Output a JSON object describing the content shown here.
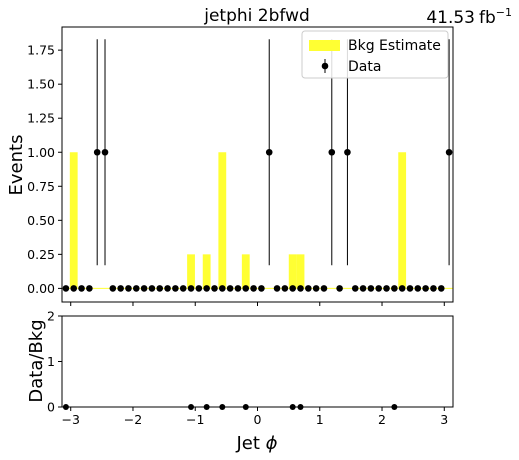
{
  "chart_data": [
    {
      "type": "bar",
      "panel": "main",
      "title": "jetphi  2bfwd",
      "luminosity_value": "41.53",
      "luminosity_unit": "fb",
      "luminosity_exponent": "−1",
      "xlabel": "",
      "ylabel": "Events",
      "xlim": [
        -3.14,
        3.14
      ],
      "ylim": [
        -0.1,
        1.92
      ],
      "yticks": [
        0.0,
        0.25,
        0.5,
        0.75,
        1.0,
        1.25,
        1.5,
        1.75
      ],
      "ytick_labels": [
        "0.00",
        "0.25",
        "0.50",
        "0.75",
        "1.00",
        "1.25",
        "1.50",
        "1.75"
      ],
      "xticks": [
        -3,
        -2,
        -1,
        0,
        1,
        2,
        3
      ],
      "legend": {
        "position": "top-right",
        "entries": [
          "Bkg Estimate",
          "Data"
        ]
      },
      "colors": {
        "bkg": "#ffff33",
        "data": "#000000"
      },
      "bin_edges": [
        -3.14,
        -3.0144,
        -2.8888,
        -2.7632,
        -2.6376,
        -2.512,
        -2.3864,
        -2.2608,
        -2.1352,
        -2.0096,
        -1.884,
        -1.7584,
        -1.6328,
        -1.5072,
        -1.3816,
        -1.256,
        -1.1304,
        -1.0048,
        -0.8792,
        -0.7536,
        -0.628,
        -0.5024,
        -0.3768,
        -0.2512,
        -0.1256,
        0.0,
        0.1256,
        0.2512,
        0.3768,
        0.5024,
        0.628,
        0.7536,
        0.8792,
        1.0048,
        1.1304,
        1.256,
        1.3816,
        1.5072,
        1.6328,
        1.7584,
        1.884,
        2.0096,
        2.1352,
        2.2608,
        2.3864,
        2.512,
        2.6376,
        2.7632,
        2.8888,
        3.0144,
        3.14
      ],
      "series": [
        {
          "name": "Bkg Estimate",
          "values": [
            0,
            1,
            0,
            0,
            0,
            0,
            0,
            0,
            0,
            0,
            0,
            0,
            0,
            0,
            0,
            0,
            0.25,
            0,
            0.25,
            0,
            1,
            0,
            0,
            0.25,
            0,
            0,
            0,
            0,
            0,
            0.25,
            0.25,
            0,
            0,
            0,
            0,
            0,
            0,
            0,
            0,
            0,
            0,
            0,
            0,
            1,
            0,
            0,
            0,
            0,
            0,
            0
          ]
        },
        {
          "name": "Data",
          "values": [
            0,
            0,
            0,
            0,
            1,
            1,
            0,
            0,
            0,
            0,
            0,
            0,
            0,
            0,
            0,
            0,
            0,
            0,
            0,
            0,
            0,
            0,
            0,
            0,
            0,
            0,
            1,
            0,
            0,
            0,
            0,
            0,
            0,
            0,
            1,
            0,
            1,
            0,
            0,
            0,
            0,
            0,
            0,
            0,
            0,
            0,
            0,
            0,
            0,
            1
          ],
          "error_high": [
            0,
            0,
            0,
            0,
            1.83,
            1.83,
            0,
            0,
            0,
            0,
            0,
            0,
            0,
            0,
            0,
            0,
            0,
            0,
            0,
            0,
            0,
            0,
            0,
            0,
            0,
            0,
            1.83,
            0,
            0,
            0,
            0,
            0,
            0,
            0,
            1.83,
            0,
            1.83,
            0,
            0,
            0,
            0,
            0,
            0,
            0,
            0,
            0,
            0,
            0,
            0,
            1.83
          ],
          "error_low": [
            0,
            0,
            0,
            0,
            0.17,
            0.17,
            0,
            0,
            0,
            0,
            0,
            0,
            0,
            0,
            0,
            0,
            0,
            0,
            0,
            0,
            0,
            0,
            0,
            0,
            0,
            0,
            0.17,
            0,
            0,
            0,
            0,
            0,
            0,
            0,
            0.17,
            0,
            0.17,
            0,
            0,
            0,
            0,
            0,
            0,
            0,
            0,
            0,
            0,
            0,
            0,
            0.17
          ]
        }
      ]
    },
    {
      "type": "scatter",
      "panel": "ratio",
      "xlabel": "Jet ",
      "xlabel_symbol": "ϕ",
      "ylabel": "Data/Bkg",
      "xlim": [
        -3.14,
        3.14
      ],
      "ylim": [
        0,
        2
      ],
      "yticks": [
        0,
        1,
        2
      ],
      "xticks": [
        -3,
        -2,
        -1,
        0,
        1,
        2,
        3
      ],
      "xtick_labels": [
        "−3",
        "−2",
        "−1",
        "0",
        "1",
        "2",
        "3"
      ],
      "x": [
        -3.0772,
        -1.0676,
        -0.8164,
        -0.5652,
        -0.188,
        0.5652,
        0.6908,
        2.1984
      ],
      "y": [
        0,
        0,
        0,
        0,
        0,
        0,
        0,
        0
      ]
    }
  ]
}
